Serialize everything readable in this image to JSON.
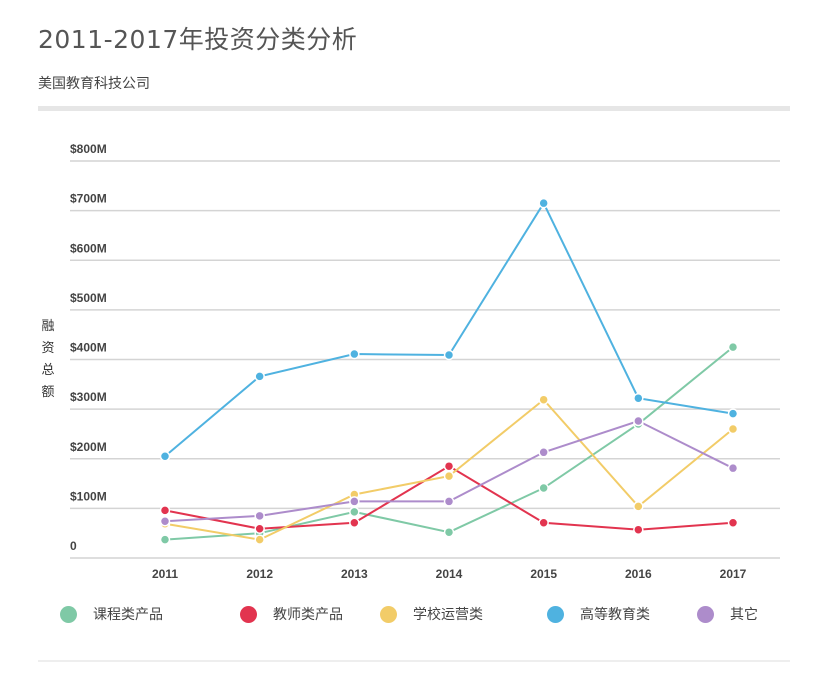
{
  "header": {
    "title": "2011-2017年投资分类分析",
    "subtitle": "美国教育科技公司"
  },
  "chart_data": {
    "type": "line",
    "title": "2011-2017年投资分类分析",
    "subtitle": "美国教育科技公司",
    "ylabel": "融资总额",
    "xlabel": "",
    "categories": [
      "2011",
      "2012",
      "2013",
      "2014",
      "2015",
      "2016",
      "2017"
    ],
    "yticks": [
      0,
      100,
      200,
      300,
      400,
      500,
      600,
      700,
      800
    ],
    "ytick_labels": [
      "0",
      "$100M",
      "$200M",
      "$300M",
      "$400M",
      "$500M",
      "$600M",
      "$700M",
      "$800M"
    ],
    "ylim": [
      0,
      800
    ],
    "unit": "$M",
    "grid": true,
    "legend_position": "bottom",
    "series": [
      {
        "name": "课程类产品",
        "color": "#7fc9a6",
        "values": [
          37,
          50,
          93,
          52,
          141,
          270,
          425
        ]
      },
      {
        "name": "教师类产品",
        "color": "#e2344f",
        "values": [
          96,
          59,
          71,
          185,
          71,
          57,
          71
        ]
      },
      {
        "name": "学校运营类",
        "color": "#f2cc68",
        "values": [
          69,
          37,
          128,
          165,
          319,
          104,
          260
        ]
      },
      {
        "name": "高等教育类",
        "color": "#4fb2e0",
        "values": [
          205,
          366,
          411,
          409,
          715,
          322,
          291
        ]
      },
      {
        "name": "其它",
        "color": "#ad8ccb",
        "values": [
          74,
          85,
          114,
          114,
          213,
          276,
          181
        ]
      }
    ]
  }
}
